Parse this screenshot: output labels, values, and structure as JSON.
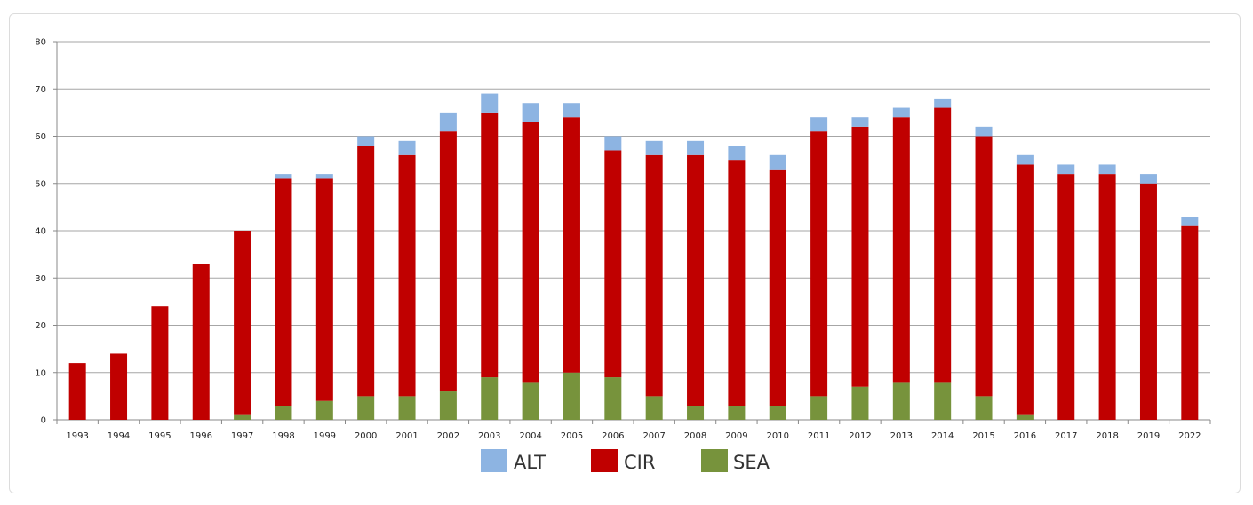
{
  "chart_data": {
    "type": "bar",
    "stacked": true,
    "categories": [
      "1993",
      "1994",
      "1995",
      "1996",
      "1997",
      "1998",
      "1999",
      "2000",
      "2001",
      "2002",
      "2003",
      "2004",
      "2005",
      "2006",
      "2007",
      "2008",
      "2009",
      "2010",
      "2011",
      "2012",
      "2013",
      "2014",
      "2015",
      "2016",
      "2017",
      "2018",
      "2019",
      "2022"
    ],
    "series": [
      {
        "name": "SEA",
        "color": "#77933c",
        "values": [
          0,
          0,
          0,
          0,
          1,
          3,
          4,
          5,
          5,
          6,
          9,
          8,
          10,
          9,
          5,
          3,
          3,
          3,
          5,
          7,
          8,
          8,
          5,
          1,
          0,
          0,
          0,
          0
        ]
      },
      {
        "name": "CIR",
        "color": "#c00000",
        "values": [
          12,
          14,
          24,
          33,
          39,
          48,
          47,
          53,
          51,
          55,
          56,
          55,
          54,
          48,
          51,
          53,
          52,
          50,
          56,
          55,
          56,
          58,
          55,
          53,
          52,
          52,
          50,
          41
        ]
      },
      {
        "name": "ALT",
        "color": "#8db4e2",
        "values": [
          0,
          0,
          0,
          0,
          0,
          1,
          1,
          2,
          3,
          4,
          4,
          4,
          3,
          3,
          3,
          3,
          3,
          3,
          3,
          2,
          2,
          2,
          2,
          2,
          2,
          2,
          2,
          2
        ]
      }
    ],
    "ylim": [
      0,
      80
    ],
    "yticks": [
      0,
      10,
      20,
      30,
      40,
      50,
      60,
      70,
      80
    ],
    "grid": true,
    "legend": {
      "position": "bottom",
      "items": [
        {
          "label": "ALT",
          "color": "#8db4e2"
        },
        {
          "label": "CIR",
          "color": "#c00000"
        },
        {
          "label": "SEA",
          "color": "#77933c"
        }
      ]
    },
    "title": "",
    "xlabel": "",
    "ylabel": ""
  }
}
